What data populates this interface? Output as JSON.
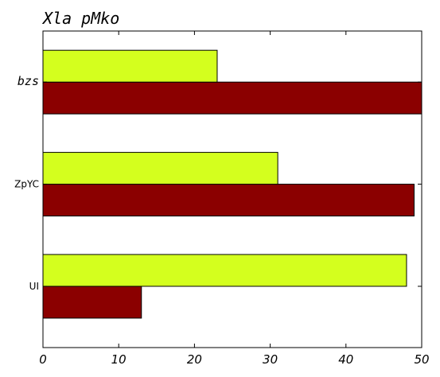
{
  "chart_data": {
    "type": "bar",
    "orientation": "horizontal",
    "title": "Xla pMko",
    "xlabel": "",
    "ylabel": "",
    "categories": [
      "UI",
      "ZpYC",
      "bzs"
    ],
    "category_label_styles": [
      "plain",
      "plain",
      "italic"
    ],
    "series": [
      {
        "values": [
          13,
          49,
          50
        ],
        "color": "#8b0000"
      },
      {
        "values": [
          48,
          31,
          23
        ],
        "color": "#d4ff1e"
      }
    ],
    "xlim": [
      0,
      50
    ],
    "xticks": [
      "0",
      "10",
      "20",
      "30",
      "40",
      "50"
    ],
    "grid": false
  }
}
